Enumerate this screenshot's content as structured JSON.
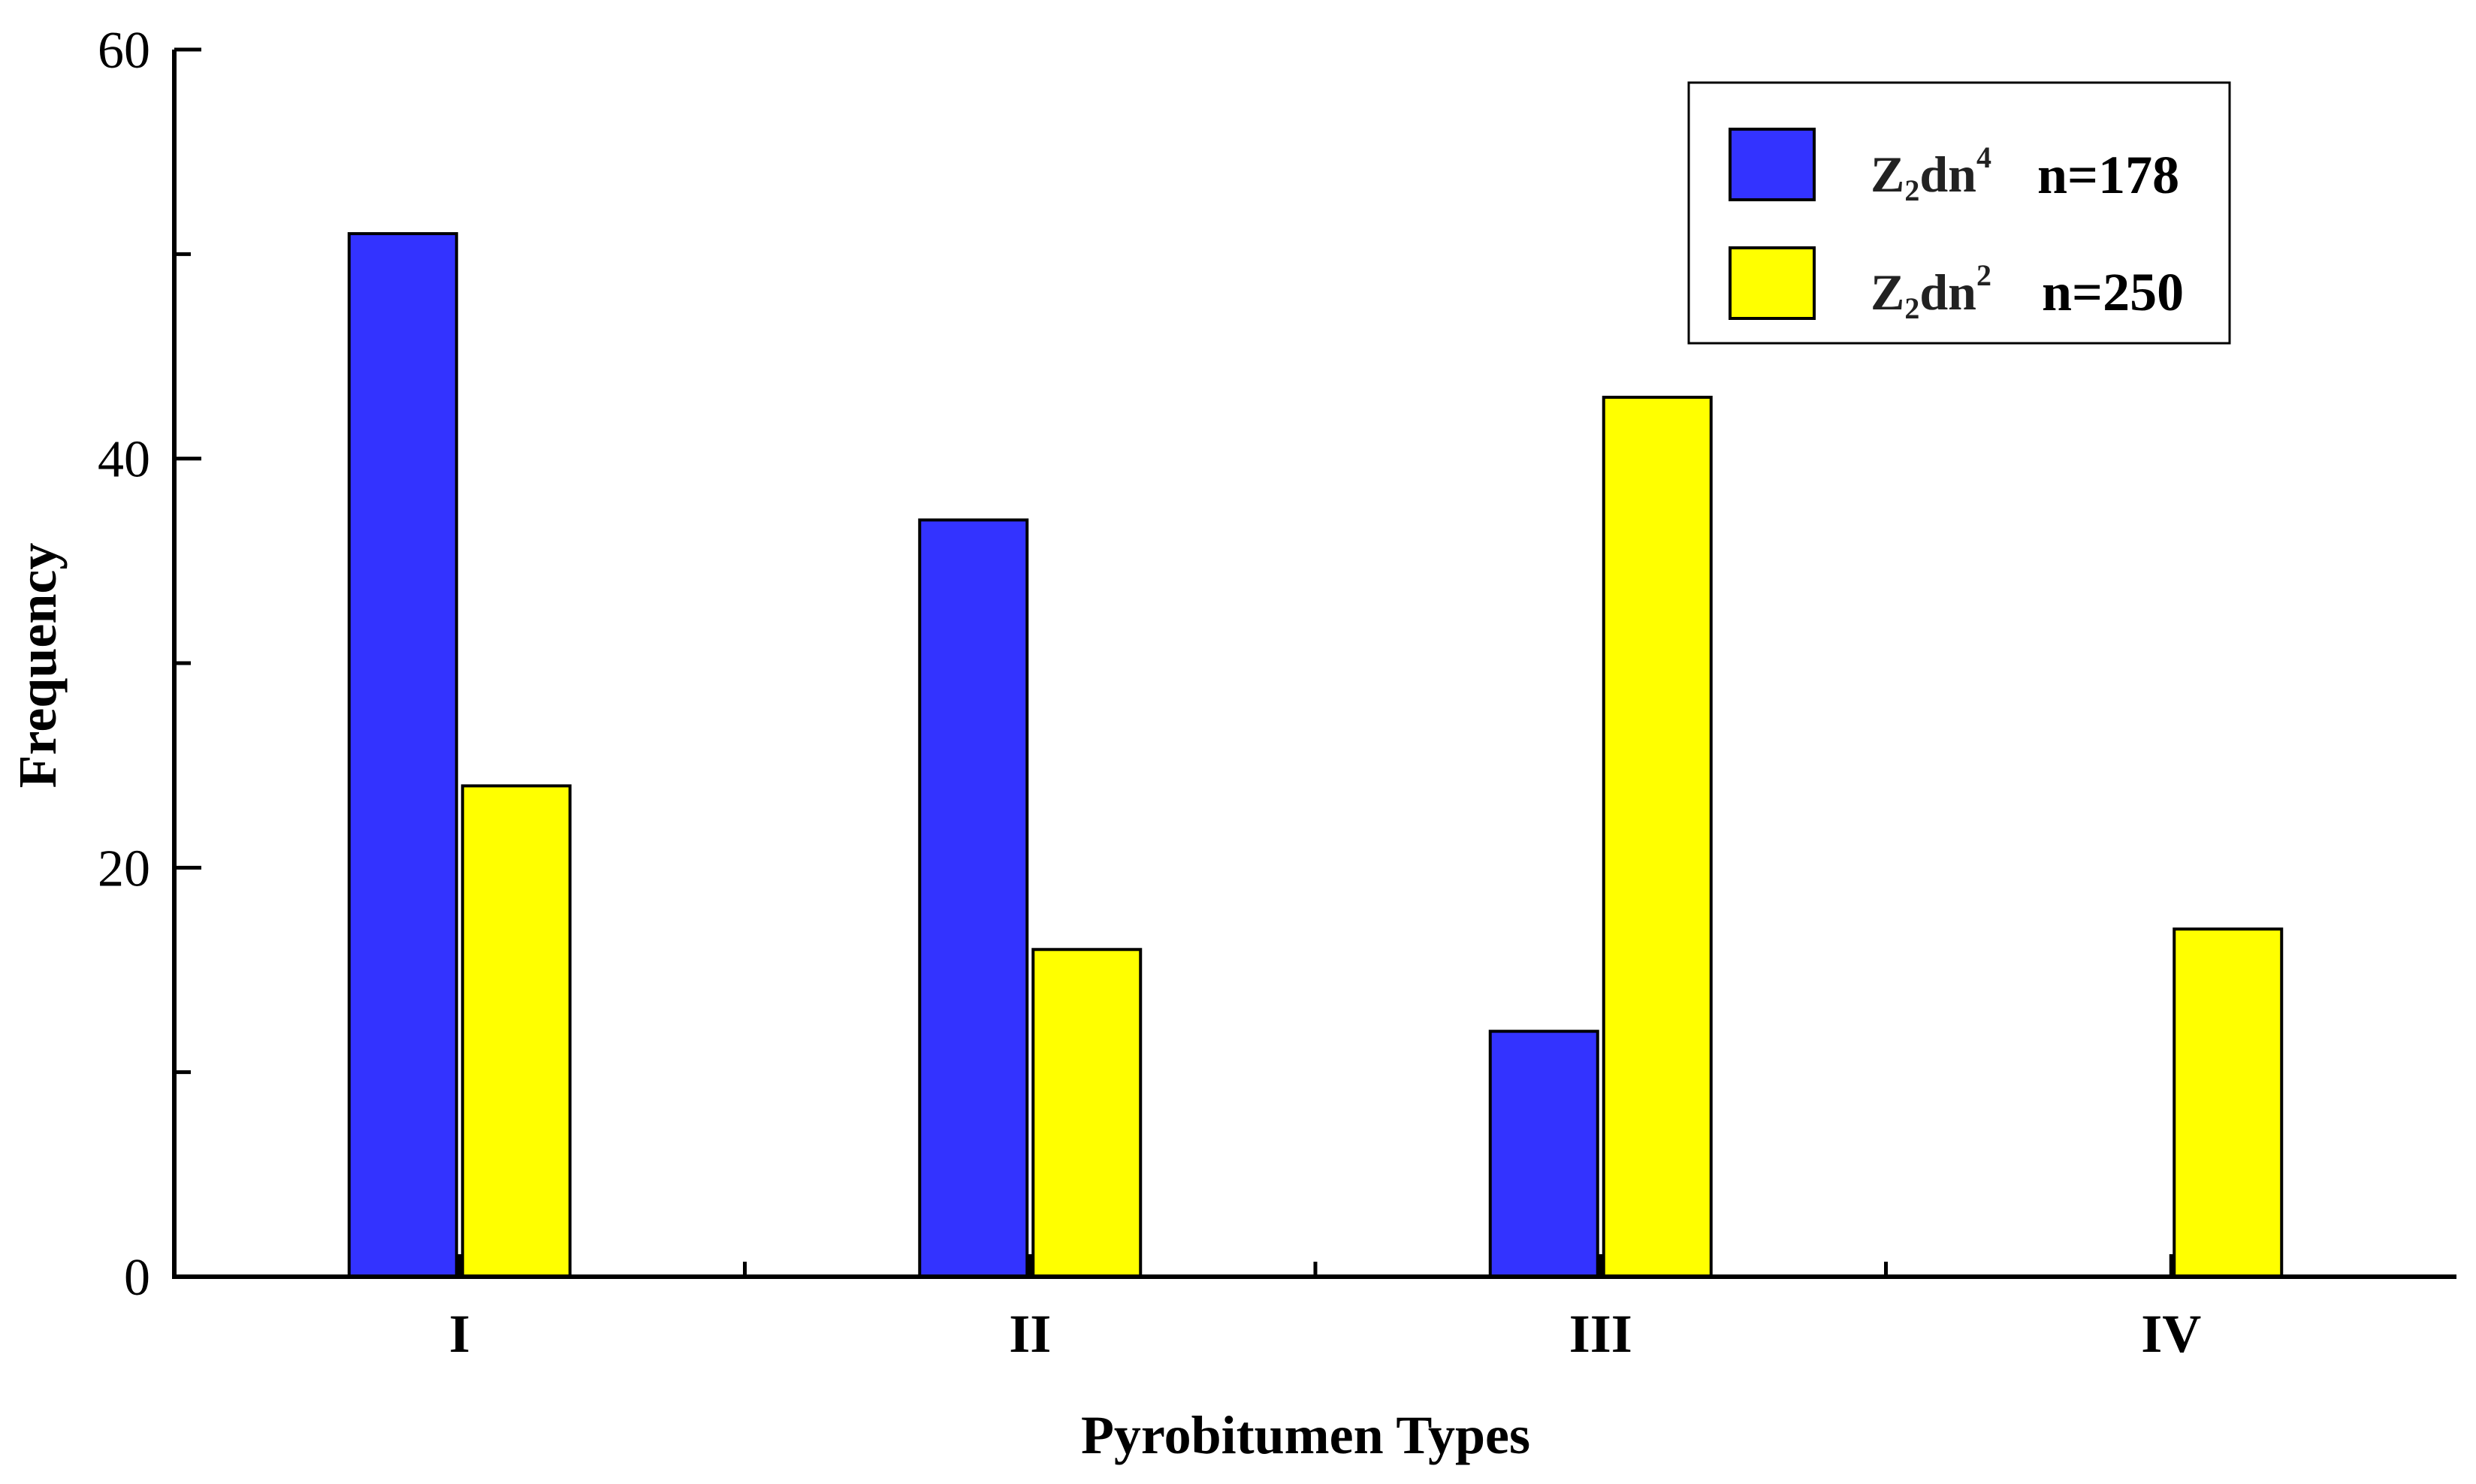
{
  "chart_data": {
    "type": "bar",
    "xlabel": "Pyrobitumen Types",
    "ylabel": "Frequency",
    "categories": [
      "I",
      "II",
      "III",
      "IV"
    ],
    "ylim": [
      0,
      60
    ],
    "yticks": [
      0,
      20,
      40,
      60
    ],
    "grid": false,
    "legend_position": "top-right",
    "series": [
      {
        "name": "Z2dn4",
        "count_label": "n=178",
        "color": "#3333ff",
        "values": [
          51,
          37,
          12,
          0
        ]
      },
      {
        "name": "Z2dn2",
        "count_label": "n=250",
        "color": "#ffff00",
        "values": [
          24,
          16,
          43,
          17
        ]
      }
    ]
  },
  "legend": {
    "items": [
      {
        "base": "Z",
        "sub": "2",
        "mid": "dn",
        "sup": "4",
        "count": "n=178"
      },
      {
        "base": "Z",
        "sub": "2",
        "mid": "dn",
        "sup": "2",
        "count": "n=250"
      }
    ]
  }
}
